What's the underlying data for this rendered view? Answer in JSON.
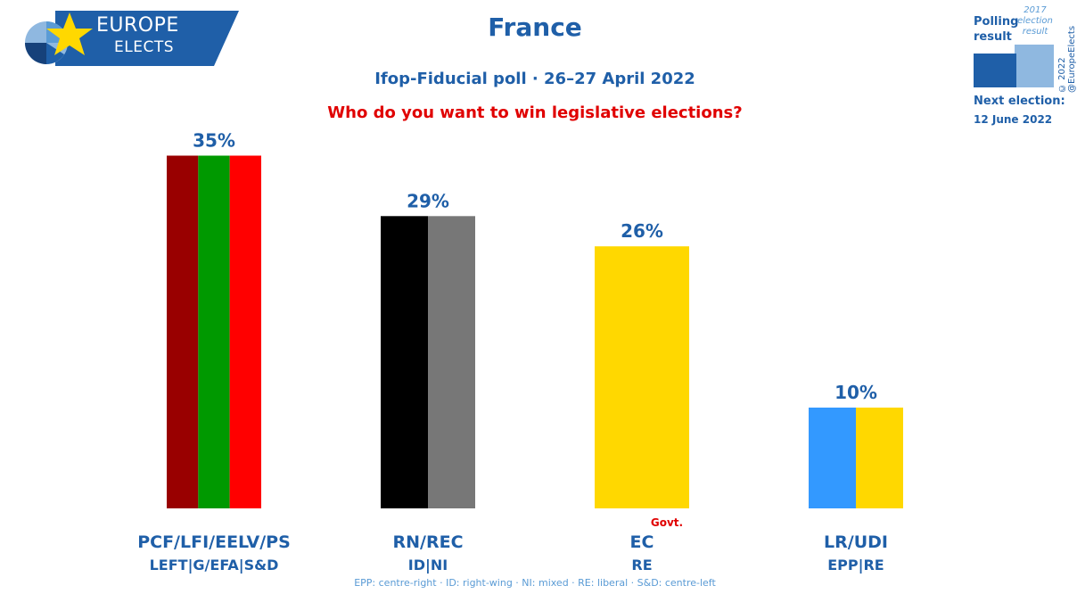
{
  "logo": {
    "line1": "EUROPE",
    "line2": "ELECTS"
  },
  "title": "France",
  "subtitle": "Ifop-Fiducial poll · 26–27 April 2022",
  "question": "Who do you want to win legislative elections?",
  "legend": {
    "polling_label": "Polling result",
    "previous_label": "2017 election result",
    "next_election_label": "Next election:",
    "next_election_date": "12 June 2022",
    "copyright": "© 2022 @EuropeElects"
  },
  "colors": {
    "brand_blue": "#1f5fa8",
    "light_blue": "#5a9bd5",
    "red_text": "#e00000"
  },
  "chart_data": {
    "type": "bar",
    "ylim": [
      0,
      40
    ],
    "grid": false,
    "categories": [
      "PCF/LFI/EELV/PS",
      "RN/REC",
      "EC",
      "LR/UDI"
    ],
    "groups": [
      "LEFT|G/EFA|S&D",
      "ID|NI",
      "RE",
      "EPP|RE"
    ],
    "values": [
      35,
      29,
      26,
      10
    ],
    "value_labels": [
      "35%",
      "29%",
      "26%",
      "10%"
    ],
    "bar_colors": [
      [
        "#990000",
        "#009900",
        "#ff0000"
      ],
      [
        "#000000",
        "#777777"
      ],
      [
        "#ffd800"
      ],
      [
        "#3399ff",
        "#ffd800"
      ]
    ],
    "annotations": [
      {
        "category": "EC",
        "text": "Govt."
      }
    ]
  },
  "footnote": "EPP: centre-right · ID: right-wing · NI: mixed · RE: liberal · S&D: centre-left"
}
